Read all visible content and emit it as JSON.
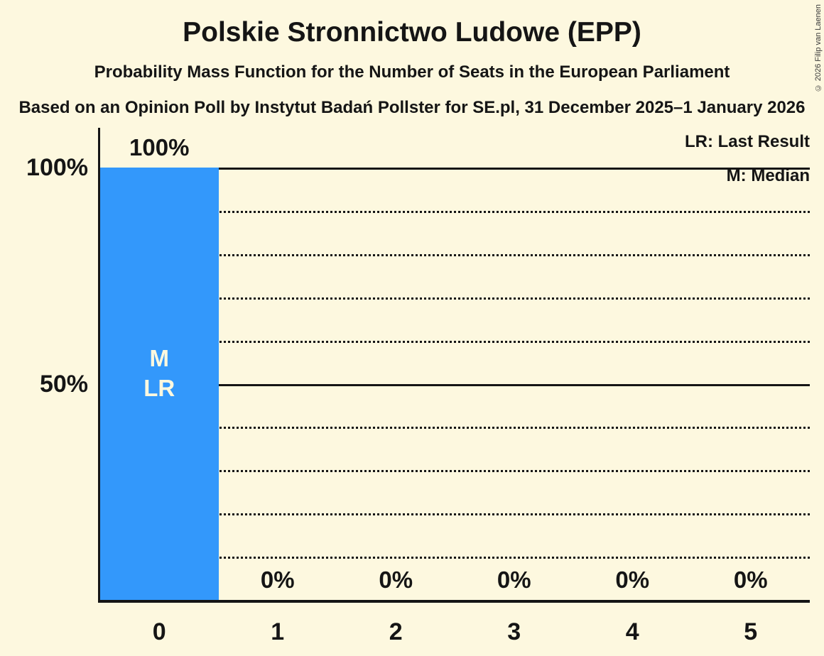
{
  "header": {
    "title": "Polskie Stronnictwo Ludowe (EPP)",
    "subtitle": "Probability Mass Function for the Number of Seats in the European Parliament",
    "source": "Based on an Opinion Poll by Instytut Badań Pollster for SE.pl, 31 December 2025–1 January 2026"
  },
  "legend": {
    "last_result": "LR: Last Result",
    "median": "M: Median"
  },
  "copyright": "© 2026 Filip van Laenen",
  "colors": {
    "background": "#FDF8DF",
    "bar": "#3398FB",
    "ink": "#151515",
    "bar_label_ink": "#FDF8DF"
  },
  "chart_data": {
    "type": "bar",
    "title": "Polskie Stronnictwo Ludowe (EPP)",
    "subtitle": "Probability Mass Function for the Number of Seats in the European Parliament",
    "source": "Based on an Opinion Poll by Instytut Badań Pollster for SE.pl, 31 December 2025–1 January 2026",
    "categories": [
      "0",
      "1",
      "2",
      "3",
      "4",
      "5"
    ],
    "values": [
      100,
      0,
      0,
      0,
      0,
      0
    ],
    "value_labels": [
      "100%",
      "0%",
      "0%",
      "0%",
      "0%",
      "0%"
    ],
    "xlabel": "",
    "ylabel": "",
    "ylim": [
      0,
      100
    ],
    "y_ticks": [
      {
        "value": 100,
        "label": "100%"
      },
      {
        "value": 50,
        "label": "50%"
      }
    ],
    "solid_gridlines": [
      100,
      50
    ],
    "dotted_gridlines": [
      90,
      80,
      70,
      60,
      40,
      30,
      20,
      10
    ],
    "grid": "horizontal",
    "legend_position": "top-right",
    "legend_entries": [
      "LR: Last Result",
      "M: Median"
    ],
    "annotations": [
      {
        "category": "0",
        "lines": [
          "M",
          "LR"
        ]
      }
    ]
  }
}
